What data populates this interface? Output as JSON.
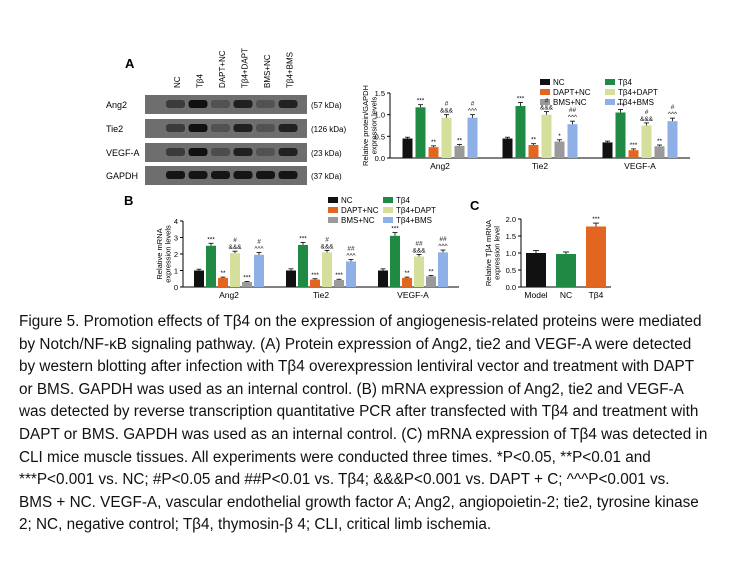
{
  "colors": {
    "nc": "#111111",
    "tb4": "#1e8a43",
    "dapt_nc": "#e2661f",
    "tb4_dapt": "#d6de9c",
    "bms_nc": "#9a9a9a",
    "tb4_bms": "#8fb0e6",
    "model": "#111111",
    "panel_c_nc": "#1e8a43",
    "panel_c_tb4": "#e2661f"
  },
  "panel_a": {
    "label": "A",
    "lanes": [
      "NC",
      "Tβ4",
      "DAPT+NC",
      "Tβ4+DAPT",
      "BMS+NC",
      "Tβ4+BMS"
    ],
    "blots": [
      {
        "name": "Ang2",
        "kda": "(57 kDa)",
        "intensity": [
          0.55,
          0.95,
          0.35,
          0.8,
          0.35,
          0.8
        ]
      },
      {
        "name": "Tie2",
        "kda": "(126 kDa)",
        "intensity": [
          0.55,
          0.95,
          0.35,
          0.8,
          0.35,
          0.8
        ]
      },
      {
        "name": "VEGF-A",
        "kda": "(23 kDa)",
        "intensity": [
          0.55,
          0.95,
          0.4,
          0.8,
          0.35,
          0.8
        ]
      },
      {
        "name": "GAPDH",
        "kda": "(37 kDa)",
        "intensity": [
          0.9,
          0.9,
          0.9,
          0.9,
          0.9,
          0.9
        ]
      }
    ]
  },
  "chart_data": [
    {
      "id": "A-bar",
      "type": "bar",
      "ylabel": "Relative protein/GAPDH expression levels",
      "ylim": [
        0,
        1.5
      ],
      "yticks": [
        "0.0",
        "0.5",
        "1.0",
        "1.5"
      ],
      "categories": [
        "Ang2",
        "Tie2",
        "VEGF-A"
      ],
      "legend": [
        "NC",
        "Tβ4",
        "DAPT+NC",
        "Tβ4+DAPT",
        "BMS+NC",
        "Tβ4+BMS"
      ],
      "legend_placement": "top-right",
      "series": [
        {
          "name": "NC",
          "values": [
            0.45,
            0.45,
            0.36
          ],
          "err": [
            0.03,
            0.03,
            0.03
          ],
          "marks": [
            "",
            "",
            ""
          ]
        },
        {
          "name": "Tβ4",
          "values": [
            1.17,
            1.2,
            1.05
          ],
          "err": [
            0.06,
            0.08,
            0.07
          ],
          "marks": [
            "***",
            "***",
            "***"
          ]
        },
        {
          "name": "DAPT+NC",
          "values": [
            0.25,
            0.3,
            0.18
          ],
          "err": [
            0.03,
            0.03,
            0.03
          ],
          "marks": [
            "**",
            "**",
            "***"
          ]
        },
        {
          "name": "Tβ4+DAPT",
          "values": [
            0.93,
            1.0,
            0.75
          ],
          "err": [
            0.07,
            0.07,
            0.06
          ],
          "marks": [
            "#\n&&&",
            "#\n&&&",
            "#\n&&&"
          ]
        },
        {
          "name": "BMS+NC",
          "values": [
            0.28,
            0.38,
            0.27
          ],
          "err": [
            0.03,
            0.04,
            0.03
          ],
          "marks": [
            "**",
            "*",
            "**"
          ]
        },
        {
          "name": "Tβ4+BMS",
          "values": [
            0.93,
            0.78,
            0.85
          ],
          "err": [
            0.07,
            0.07,
            0.07
          ],
          "marks": [
            "#\n^^^",
            "##\n^^^",
            "#\n^^^"
          ]
        }
      ]
    },
    {
      "id": "B",
      "type": "bar",
      "label": "B",
      "ylabel": "Relative mRNA expression levels",
      "ylim": [
        0,
        4
      ],
      "yticks": [
        "0",
        "1",
        "2",
        "3",
        "4"
      ],
      "categories": [
        "Ang2",
        "Tie2",
        "VEGF-A"
      ],
      "legend": [
        "NC",
        "Tβ4",
        "DAPT+NC",
        "Tβ4+DAPT",
        "BMS+NC",
        "Tβ4+BMS"
      ],
      "legend_placement": "top-right",
      "series": [
        {
          "name": "NC",
          "values": [
            1.0,
            1.0,
            1.0
          ],
          "err": [
            0.08,
            0.1,
            0.1
          ],
          "marks": [
            "",
            "",
            ""
          ]
        },
        {
          "name": "Tβ4",
          "values": [
            2.5,
            2.55,
            3.1
          ],
          "err": [
            0.15,
            0.15,
            0.2
          ],
          "marks": [
            "***",
            "***",
            "***"
          ]
        },
        {
          "name": "DAPT+NC",
          "values": [
            0.55,
            0.45,
            0.55
          ],
          "err": [
            0.05,
            0.05,
            0.05
          ],
          "marks": [
            "**",
            "***",
            "**"
          ]
        },
        {
          "name": "Tβ4+DAPT",
          "values": [
            2.05,
            2.1,
            1.85
          ],
          "err": [
            0.12,
            0.12,
            0.12
          ],
          "marks": [
            "#\n&&&",
            "#\n&&&",
            "##\n&&&"
          ]
        },
        {
          "name": "BMS+NC",
          "values": [
            0.3,
            0.42,
            0.65
          ],
          "err": [
            0.04,
            0.05,
            0.05
          ],
          "marks": [
            "***",
            "***",
            "**"
          ]
        },
        {
          "name": "Tβ4+BMS",
          "values": [
            1.95,
            1.55,
            2.1
          ],
          "err": [
            0.14,
            0.12,
            0.14
          ],
          "marks": [
            "#\n^^^",
            "##\n^^^",
            "##\n^^^"
          ]
        }
      ]
    },
    {
      "id": "C",
      "type": "bar",
      "label": "C",
      "ylabel": "Relative Tβ4 mRNA expression level",
      "ylim": [
        0,
        2.0
      ],
      "yticks": [
        "0.0",
        "0.5",
        "1.0",
        "1.5",
        "2.0"
      ],
      "categories": [
        "Model",
        "NC",
        "Tβ4"
      ],
      "values": [
        1.0,
        0.97,
        1.78
      ],
      "err": [
        0.07,
        0.06,
        0.1
      ],
      "marks": [
        "",
        "",
        "***"
      ]
    }
  ],
  "caption": [
    "Figure 5. Promotion effects of Tβ4 on the expression of angiogenesis-related proteins were mediated",
    "by Notch/NF-κB signaling pathway. (A) Protein expression of Ang2, tie2 and VEGF-A were detected",
    "by western blotting after infection with Tβ4 overexpression lentiviral vector and treatment with DAPT",
    "or BMS. GAPDH was used as an internal control. (B) mRNA expression of Ang2, tie2 and VEGF-A",
    "was detected by reverse transcription quantitative PCR after transfected with Tβ4 and treatment with",
    "DAPT or BMS. GAPDH was used as an internal control. (C) mRNA expression of Tβ4 was detected in",
    "CLI mice muscle tissues. All experiments were conducted three times. *P<0.05, **P<0.01 and",
    "***P<0.001 vs. NC; #P<0.05 and ##P<0.01 vs. Tβ4; &&&P<0.001 vs. DAPT + C; ^^^P<0.001 vs.",
    "BMS + NC. VEGF-A, vascular endothelial growth factor A; Ang2, angiopoietin-2; tie2, tyrosine kinase",
    "2; NC, negative control; Tβ4, thymosin-β 4; CLI, critical limb ischemia."
  ]
}
